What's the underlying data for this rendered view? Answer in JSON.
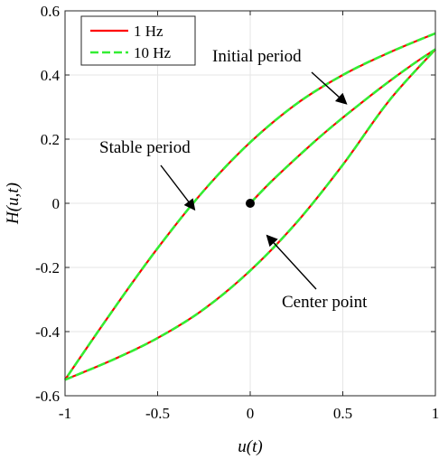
{
  "chart_data": {
    "type": "line",
    "xlabel": "u(t)",
    "ylabel": "H(u,t)",
    "xlim": [
      -1,
      1
    ],
    "ylim": [
      -0.6,
      0.6
    ],
    "xticks": [
      -1,
      -0.5,
      0,
      0.5,
      1
    ],
    "xtick_labels": [
      "-1",
      "-0.5",
      "0",
      "0.5",
      "1"
    ],
    "yticks": [
      -0.6,
      -0.4,
      -0.2,
      0,
      0.2,
      0.4,
      0.6
    ],
    "ytick_labels": [
      "-0.6",
      "-0.4",
      "-0.2",
      "0",
      "0.2",
      "0.4",
      "0.6"
    ],
    "grid": true,
    "legend_position": "top-left",
    "series": [
      {
        "name": "1 Hz",
        "color": "#ff0000",
        "style": "solid",
        "initial": {
          "x": [
            0,
            0.1,
            0.2,
            0.3,
            0.4,
            0.5,
            0.6,
            0.7,
            0.8,
            0.9,
            1.0
          ],
          "y": [
            0,
            0.06,
            0.115,
            0.168,
            0.219,
            0.267,
            0.313,
            0.358,
            0.401,
            0.442,
            0.48
          ]
        },
        "upper": {
          "x": [
            1.0,
            0.75,
            0.5,
            0.25,
            0.0,
            -0.25,
            -0.5,
            -0.75,
            -1.0
          ],
          "y": [
            0.53,
            0.47,
            0.4,
            0.31,
            0.19,
            0.04,
            -0.14,
            -0.34,
            -0.55
          ]
        },
        "lower": {
          "x": [
            -1.0,
            -0.75,
            -0.5,
            -0.25,
            0.0,
            0.25,
            0.5,
            0.75,
            1.0
          ],
          "y": [
            -0.55,
            -0.49,
            -0.42,
            -0.33,
            -0.21,
            -0.06,
            0.12,
            0.32,
            0.48
          ]
        }
      },
      {
        "name": "10 Hz",
        "color": "#33ee33",
        "style": "dashed",
        "initial": {
          "x": [
            0,
            0.1,
            0.2,
            0.3,
            0.4,
            0.5,
            0.6,
            0.7,
            0.8,
            0.9,
            1.0
          ],
          "y": [
            0,
            0.06,
            0.115,
            0.168,
            0.219,
            0.267,
            0.313,
            0.358,
            0.401,
            0.442,
            0.48
          ]
        },
        "upper": {
          "x": [
            1.0,
            0.75,
            0.5,
            0.25,
            0.0,
            -0.25,
            -0.5,
            -0.75,
            -1.0
          ],
          "y": [
            0.53,
            0.47,
            0.4,
            0.31,
            0.19,
            0.04,
            -0.14,
            -0.34,
            -0.55
          ]
        },
        "lower": {
          "x": [
            -1.0,
            -0.75,
            -0.5,
            -0.25,
            0.0,
            0.25,
            0.5,
            0.75,
            1.0
          ],
          "y": [
            -0.55,
            -0.49,
            -0.42,
            -0.33,
            -0.21,
            -0.06,
            0.12,
            0.32,
            0.48
          ]
        }
      }
    ],
    "center_point": {
      "x": 0,
      "y": 0
    },
    "annotations": [
      {
        "text": "Initial period",
        "target_x": 0.52,
        "target_y": 0.31
      },
      {
        "text": "Stable period",
        "target_x": -0.3,
        "target_y": -0.02
      },
      {
        "text": "Center point",
        "target_x": 0.09,
        "target_y": -0.1
      }
    ]
  }
}
